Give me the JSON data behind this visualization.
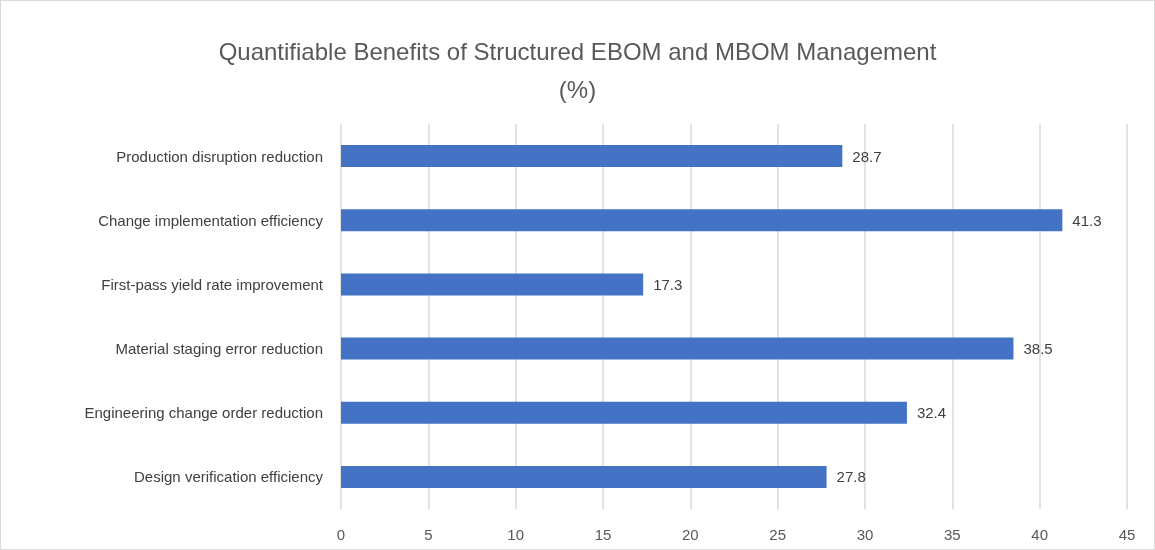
{
  "chart_data": {
    "type": "bar",
    "orientation": "horizontal",
    "title": "Quantifiable Benefits of Structured EBOM and MBOM Management\n(%)",
    "categories": [
      "Production disruption reduction",
      "Change implementation efficiency",
      "First-pass yield rate improvement",
      "Material staging error reduction",
      "Engineering change order reduction",
      "Design verification efficiency"
    ],
    "values": [
      28.7,
      41.3,
      17.3,
      38.5,
      32.4,
      27.8
    ],
    "color": "#4472c4",
    "xlim": [
      0,
      45
    ],
    "xticks": [
      0,
      5,
      10,
      15,
      20,
      25,
      30,
      35,
      40,
      45
    ],
    "grid": "x",
    "data_labels": true
  }
}
